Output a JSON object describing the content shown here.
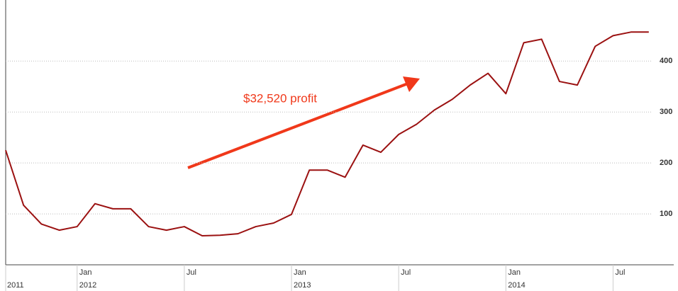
{
  "chart_data": {
    "type": "line",
    "annotation": "$32,520 profit",
    "x": [
      "2011-09",
      "2011-10",
      "2011-11",
      "2011-12",
      "2012-01",
      "2012-02",
      "2012-03",
      "2012-04",
      "2012-05",
      "2012-06",
      "2012-07",
      "2012-08",
      "2012-09",
      "2012-10",
      "2012-11",
      "2012-12",
      "2013-01",
      "2013-02",
      "2013-03",
      "2013-04",
      "2013-05",
      "2013-06",
      "2013-07",
      "2013-08",
      "2013-09",
      "2013-10",
      "2013-11",
      "2013-12",
      "2014-01",
      "2014-02",
      "2014-03",
      "2014-04",
      "2014-05",
      "2014-06",
      "2014-07",
      "2014-08",
      "2014-09"
    ],
    "series": [
      {
        "color": "#9b1111",
        "values": [
          225,
          117,
          80,
          68,
          75,
          120,
          110,
          110,
          75,
          68,
          75,
          57,
          58,
          61,
          75,
          82,
          99,
          186,
          186,
          172,
          235,
          221,
          256,
          276,
          304,
          325,
          353,
          376,
          336,
          436,
          443,
          360,
          353,
          429,
          450,
          457,
          457
        ]
      }
    ],
    "xlim": [
      "2011-09",
      "2014-10"
    ],
    "xticks": [
      {
        "value": "2011-09",
        "label": "2011"
      },
      {
        "value": "2012-01",
        "label": "Jan",
        "year": "2012"
      },
      {
        "value": "2012-07",
        "label": "Jul"
      },
      {
        "value": "2013-01",
        "label": "Jan",
        "year": "2013"
      },
      {
        "value": "2013-07",
        "label": "Jul"
      },
      {
        "value": "2014-01",
        "label": "Jan",
        "year": "2014"
      },
      {
        "value": "2014-07",
        "label": "Jul"
      }
    ],
    "ylim": [
      0,
      520
    ],
    "yticks": [
      100,
      200,
      300,
      400
    ],
    "grid": true
  }
}
